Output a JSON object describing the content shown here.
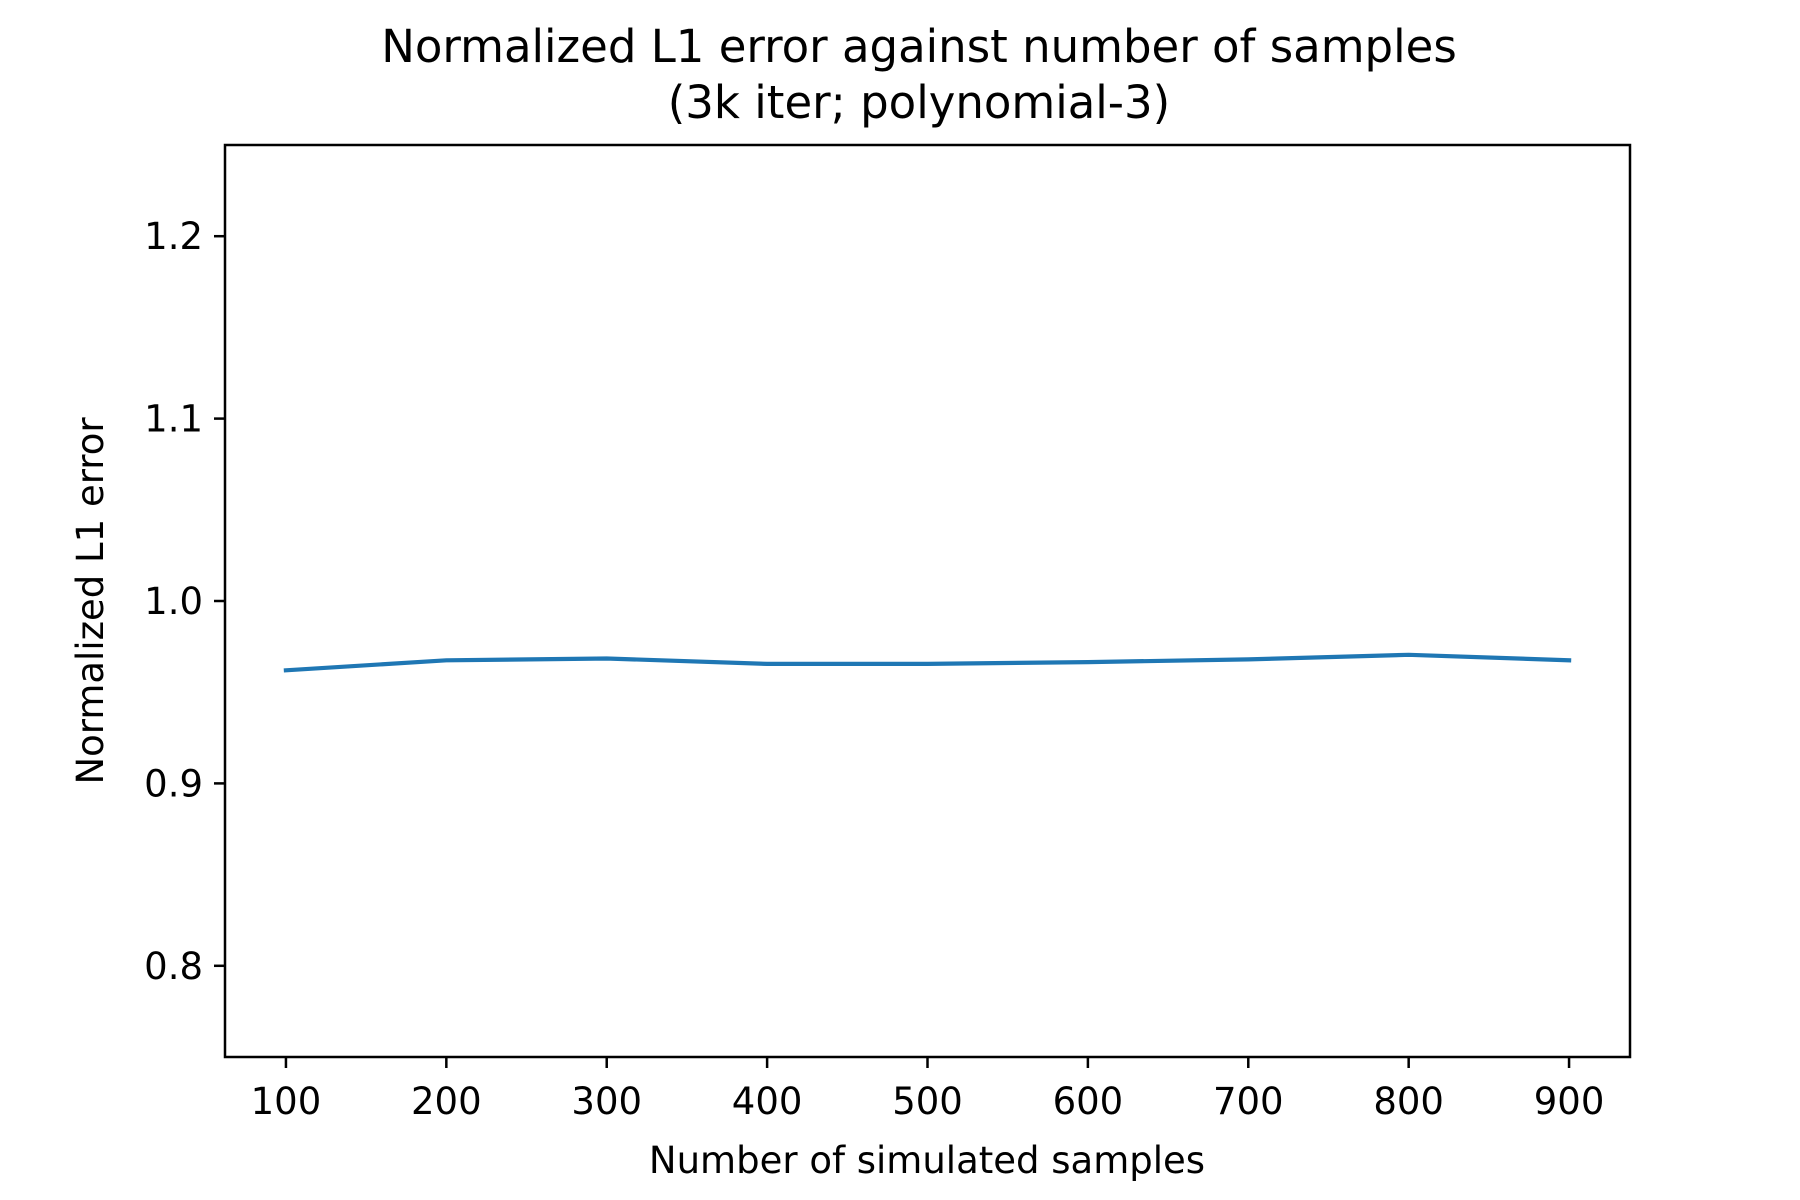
{
  "chart_data": {
    "type": "line",
    "title": "Normalized L1 error against number of samples",
    "subtitle": "(3k iter; polynomial-3)",
    "xlabel": "Number of simulated samples",
    "ylabel": "Normalized L1 error",
    "x": [
      100,
      200,
      300,
      400,
      500,
      600,
      700,
      800,
      900
    ],
    "series": [
      {
        "values": [
          0.962,
          0.9675,
          0.9685,
          0.9655,
          0.9655,
          0.9665,
          0.968,
          0.9705,
          0.9675
        ],
        "color": "#1f77b4"
      }
    ],
    "xlim": [
      62,
      938
    ],
    "ylim": [
      0.75,
      1.25
    ],
    "xticks": [
      100,
      200,
      300,
      400,
      500,
      600,
      700,
      800,
      900
    ],
    "yticks": [
      0.8,
      0.9,
      1.0,
      1.1,
      1.2
    ],
    "xtick_labels": [
      "100",
      "200",
      "300",
      "400",
      "500",
      "600",
      "700",
      "800",
      "900"
    ],
    "ytick_labels": [
      "0.8",
      "0.9",
      "1.0",
      "1.1",
      "1.2"
    ],
    "grid": false,
    "legend": "none"
  }
}
